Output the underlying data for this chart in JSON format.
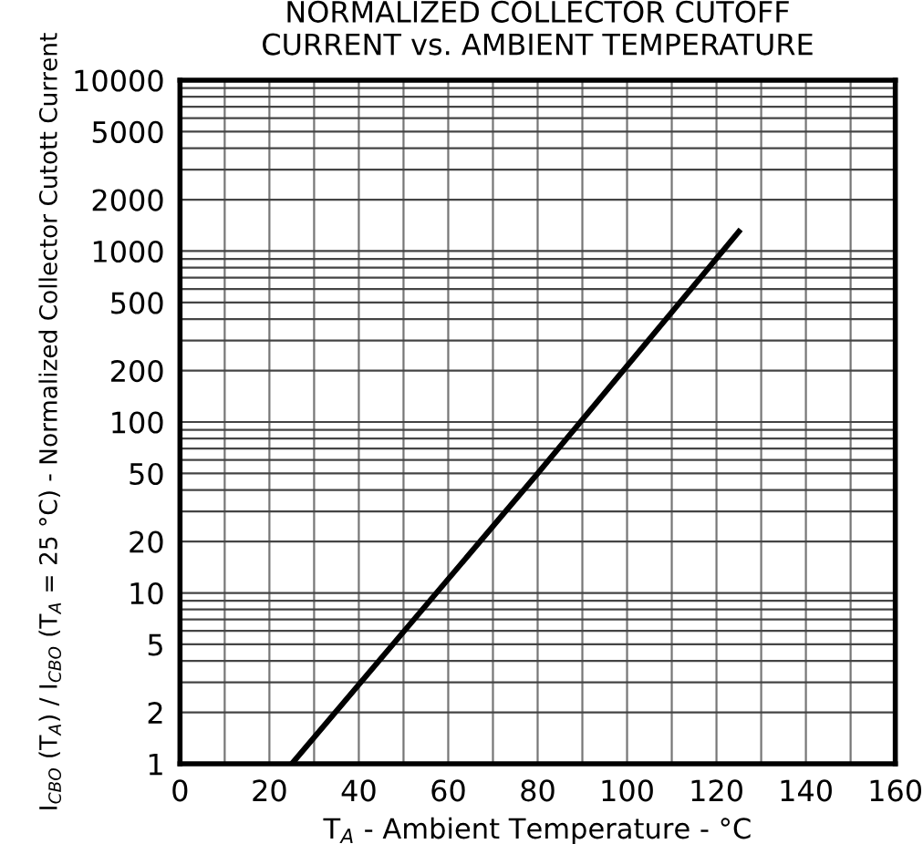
{
  "chart_data": {
    "type": "line",
    "title": "NORMALIZED COLLECTOR CUTOFF\nCURRENT vs. AMBIENT TEMPERATURE",
    "xlabel": "T$_{A}$ - Ambient Temperature - °C",
    "ylabel": "I$_{CBO}$ (T$_{A}$) / I$_{CBO}$ (T$_{A}$ = 25 °C) - Normalized Collector Cutott Current",
    "series": [
      {
        "x": [
          25,
          80,
          125
        ],
        "values": [
          1,
          50,
          1300
        ],
        "color": "#000000"
      }
    ],
    "log": "y",
    "xlim": [
      0,
      160
    ],
    "xticks": [
      0,
      20,
      40,
      60,
      80,
      100,
      120,
      140,
      160
    ],
    "ylim": [
      1,
      10000
    ],
    "yticks": [
      1,
      2,
      5,
      10,
      20,
      50,
      100,
      200,
      500,
      1000,
      2000,
      5000,
      10000
    ],
    "grid": true,
    "marker": "none",
    "line_style": "solid"
  }
}
